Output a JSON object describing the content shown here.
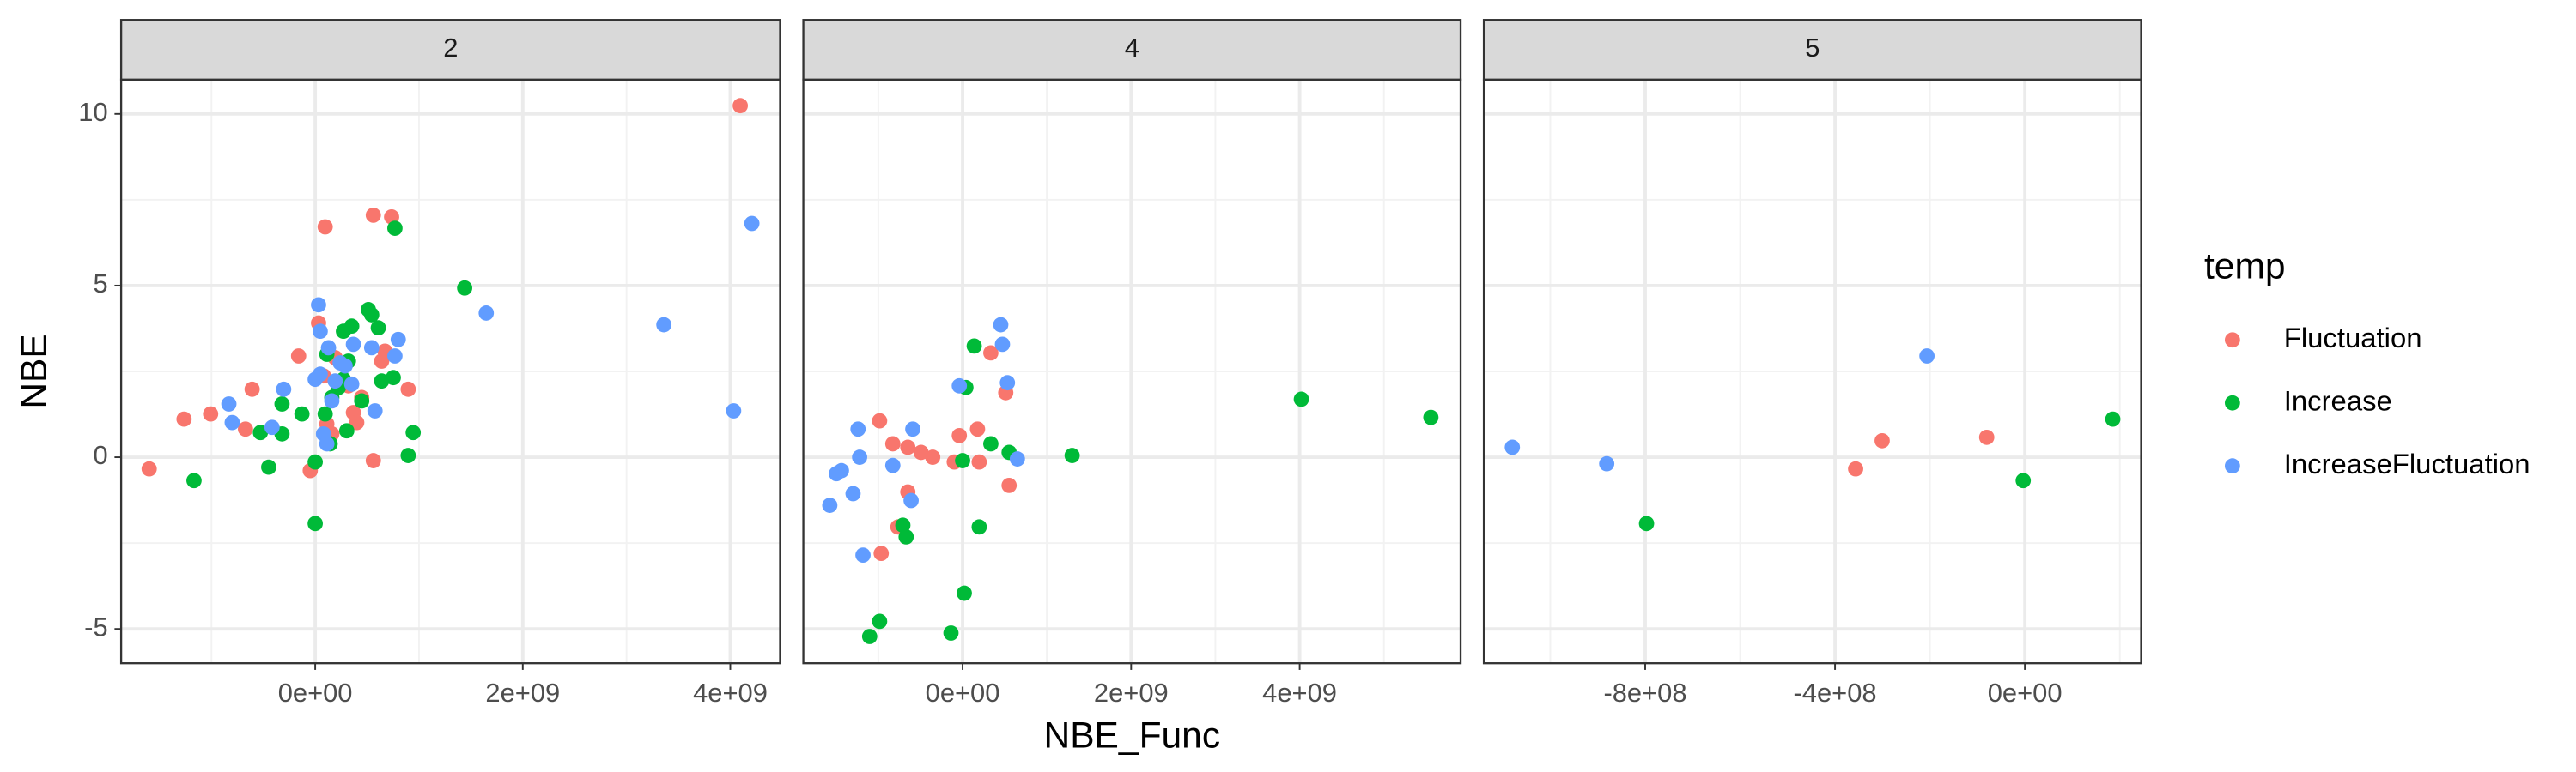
{
  "chart_data": {
    "type": "scatter",
    "x_label": "NBE_Func",
    "y_label": "NBE",
    "legend_title": "temp",
    "legend": "right",
    "grid": true,
    "ylim": [
      -6,
      11
    ],
    "yticks": [
      -5,
      0,
      5,
      10
    ],
    "series": [
      {
        "name": "Fluctuation",
        "color": "#F8766D"
      },
      {
        "name": "Increase",
        "color": "#00BA38"
      },
      {
        "name": "IncreaseFluctuation",
        "color": "#619CFF"
      }
    ],
    "facets": [
      {
        "title": "2",
        "xlim": [
          -1870000000.0,
          4480000000.0
        ],
        "xticks": [
          {
            "value": 0,
            "label": "0e+00"
          },
          {
            "value": 2000000000.0,
            "label": "2e+09"
          },
          {
            "value": 4000000000.0,
            "label": "4e+09"
          }
        ],
        "data": [
          {
            "x": [
              -1600000000.0,
              -1264000000.0,
              -1008000000.0,
              -672000000.0,
              -608000000.0,
              -160000000.0,
              -48000000.0,
              96000000.0,
              32000000.0,
              80000000.0,
              112000000.0,
              192000000.0,
              320000000.0,
              368000000.0,
              448000000.0,
              560000000.0,
              560000000.0,
              640000000.0,
              736000000.0,
              672000000.0,
              896000000.0,
              4096000000.0,
              160000000.0,
              400000000.0
            ],
            "values": [
              -0.34,
              1.11,
              1.26,
              0.82,
              1.98,
              2.95,
              -0.39,
              6.71,
              3.91,
              2.37,
              0.97,
              2.9,
              2.08,
              1.3,
              1.74,
              7.05,
              -0.1,
              2.8,
              7.0,
              3.09,
              1.98,
              10.24,
              0.68,
              1.01
            ]
          },
          {
            "x": [
              -1168000000.0,
              -448000000.0,
              -528000000.0,
              -320000000.0,
              -320000000.0,
              -128000000.0,
              0,
              0,
              96000000.0,
              112000000.0,
              144000000.0,
              224000000.0,
              272000000.0,
              320000000.0,
              304000000.0,
              352000000.0,
              448000000.0,
              512000000.0,
              544000000.0,
              608000000.0,
              640000000.0,
              768000000.0,
              752000000.0,
              896000000.0,
              944000000.0,
              1440000000.0,
              272000000.0,
              160000000.0
            ],
            "values": [
              -0.68,
              -0.29,
              0.72,
              1.55,
              0.68,
              1.26,
              -0.14,
              -1.93,
              1.26,
              3.0,
              0.39,
              2.03,
              2.27,
              2.8,
              0.77,
              3.82,
              1.64,
              4.3,
              4.15,
              3.77,
              2.22,
              6.67,
              2.32,
              0.05,
              0.72,
              4.93,
              3.67,
              1.74
            ]
          },
          {
            "x": [
              -832000000.0,
              -800000000.0,
              -416000000.0,
              -304000000.0,
              0,
              32000000.0,
              48000000.0,
              48000000.0,
              80000000.0,
              112000000.0,
              128000000.0,
              160000000.0,
              192000000.0,
              240000000.0,
              288000000.0,
              352000000.0,
              368000000.0,
              544000000.0,
              576000000.0,
              768000000.0,
              800000000.0,
              1648000000.0,
              3360000000.0,
              4032000000.0,
              4208000000.0
            ],
            "values": [
              1.55,
              1.01,
              0.87,
              1.98,
              2.27,
              4.44,
              3.67,
              2.42,
              0.68,
              0.39,
              3.19,
              1.64,
              2.22,
              2.75,
              2.66,
              2.13,
              3.29,
              3.19,
              1.35,
              2.95,
              3.43,
              4.2,
              3.86,
              1.35,
              6.81
            ]
          }
        ]
      },
      {
        "title": "4",
        "xlim": [
          -1890000000.0,
          5910000000.0
        ],
        "xticks": [
          {
            "value": 0,
            "label": "0e+00"
          },
          {
            "value": 2000000000.0,
            "label": "2e+09"
          },
          {
            "value": 4000000000.0,
            "label": "4e+09"
          }
        ],
        "data": [
          {
            "x": [
              -985000000.0,
              -828000000.0,
              -650000000.0,
              -493000000.0,
              -355000000.0,
              -768000000.0,
              -966000000.0,
              -650000000.0,
              -99000000.0,
              -39000000.0,
              177000000.0,
              197000000.0,
              335000000.0,
              512000000.0,
              552000000.0
            ],
            "values": [
              1.06,
              0.39,
              0.29,
              0.14,
              0,
              -2.03,
              -2.8,
              -1.01,
              -0.14,
              0.63,
              0.82,
              -0.14,
              3.04,
              1.88,
              -0.82
            ]
          },
          {
            "x": [
              -1103000000.0,
              -985000000.0,
              -709000000.0,
              -670000000.0,
              -138000000.0,
              20000000.0,
              0,
              39000000.0,
              138000000.0,
              197000000.0,
              335000000.0,
              552000000.0,
              1300000000.0,
              4020000000.0,
              5557000000.0
            ],
            "values": [
              -5.22,
              -4.78,
              -1.98,
              -2.32,
              -5.12,
              -3.96,
              -0.1,
              2.03,
              3.24,
              -2.03,
              0.39,
              0.14,
              0.05,
              1.69,
              1.16
            ]
          },
          {
            "x": [
              -1576000000.0,
              -1498000000.0,
              -1438000000.0,
              -1300000000.0,
              -1241000000.0,
              -1222000000.0,
              -1182000000.0,
              -828000000.0,
              -611000000.0,
              -591000000.0,
              -39000000.0,
              453000000.0,
              473000000.0,
              532000000.0,
              650000000.0
            ],
            "values": [
              -1.4,
              -0.48,
              -0.39,
              -1.06,
              0.82,
              0,
              -2.85,
              -0.24,
              -1.26,
              0.82,
              2.08,
              3.86,
              3.29,
              2.17,
              -0.05
            ]
          }
        ]
      },
      {
        "title": "5",
        "xlim": [
          -1140000000.0,
          245000000.0
        ],
        "xticks": [
          {
            "value": -800000000.0,
            "label": "-8e+08"
          },
          {
            "value": -400000000.0,
            "label": "-4e+08"
          },
          {
            "value": 0,
            "label": "0e+00"
          }
        ],
        "data": [
          {
            "x": [
              -356600000.0,
              -300700000.0,
              -80400000.0
            ],
            "values": [
              -0.34,
              0.48,
              0.58
            ]
          },
          {
            "x": [
              -797200000.0,
              -3500000.0,
              185300000.0
            ],
            "values": [
              -1.93,
              -0.68,
              1.11
            ]
          },
          {
            "x": [
              -1080000000.0,
              -881100000.0,
              -206300000.0
            ],
            "values": [
              0.29,
              -0.19,
              2.95
            ]
          }
        ]
      }
    ]
  }
}
